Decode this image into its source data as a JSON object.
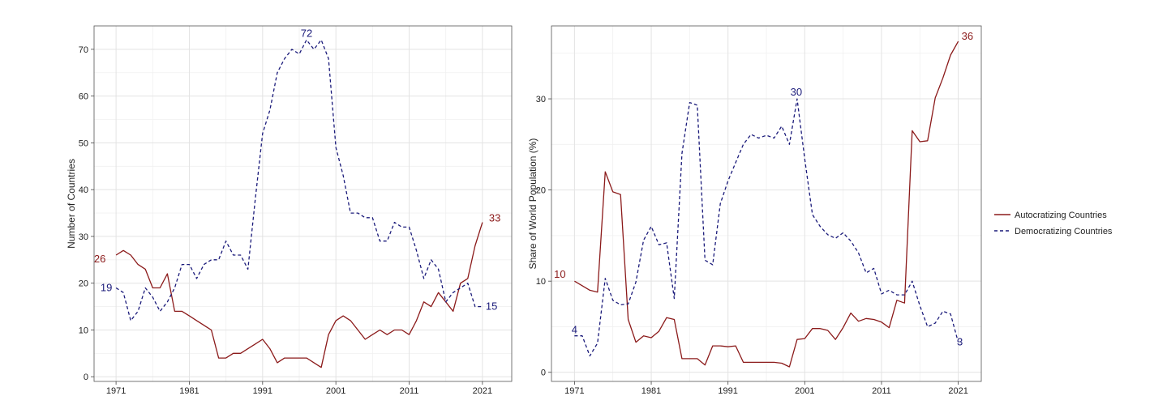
{
  "colors": {
    "autocratizing": "#8b1a1a",
    "democratizing": "#1a1a7a"
  },
  "legend": {
    "position": "right",
    "items": [
      {
        "label": "Autocratizing Countries",
        "style": "solid",
        "color": "#8b1a1a"
      },
      {
        "label": "Democratizing Countries",
        "style": "dashed",
        "color": "#1a1a7a"
      }
    ]
  },
  "chart_data": [
    {
      "type": "line",
      "title": "",
      "xlabel": "",
      "ylabel": "Number of Countries",
      "xlim": [
        1968,
        2025
      ],
      "ylim": [
        -1,
        75
      ],
      "xticks": [
        1971,
        1981,
        1991,
        2001,
        2011,
        2021
      ],
      "yticks": [
        0,
        10,
        20,
        30,
        40,
        50,
        60,
        70
      ],
      "grid": true,
      "x": [
        1971,
        1972,
        1973,
        1974,
        1975,
        1976,
        1977,
        1978,
        1979,
        1980,
        1981,
        1982,
        1983,
        1984,
        1985,
        1986,
        1987,
        1988,
        1989,
        1990,
        1991,
        1992,
        1993,
        1994,
        1995,
        1996,
        1997,
        1998,
        1999,
        2000,
        2001,
        2002,
        2003,
        2004,
        2005,
        2006,
        2007,
        2008,
        2009,
        2010,
        2011,
        2012,
        2013,
        2014,
        2015,
        2016,
        2017,
        2018,
        2019,
        2020,
        2021
      ],
      "series": [
        {
          "name": "Autocratizing Countries",
          "style": "solid",
          "values": [
            26,
            27,
            26,
            24,
            23,
            19,
            19,
            22,
            14,
            14,
            13,
            12,
            11,
            10,
            4,
            4,
            5,
            5,
            6,
            7,
            8,
            6,
            3,
            4,
            4,
            4,
            4,
            3,
            2,
            9,
            12,
            13,
            12,
            10,
            8,
            9,
            10,
            9,
            10,
            10,
            9,
            12,
            16,
            15,
            18,
            16,
            14,
            20,
            21,
            28,
            33
          ]
        },
        {
          "name": "Democratizing Countries",
          "style": "dashed",
          "values": [
            19,
            18,
            12,
            14,
            19,
            17,
            14,
            16,
            19,
            24,
            24,
            21,
            24,
            25,
            25,
            29,
            26,
            26,
            23,
            38,
            52,
            57,
            65,
            68,
            70,
            69,
            72,
            70,
            72,
            68,
            49,
            43,
            35,
            35,
            34,
            34,
            29,
            29,
            33,
            32,
            32,
            27,
            21,
            25,
            23,
            16,
            18,
            19,
            20,
            15,
            15
          ]
        }
      ],
      "annotations": [
        {
          "text": "26",
          "series": 0
        },
        {
          "text": "19",
          "series": 1
        },
        {
          "text": "72",
          "series": 1
        },
        {
          "text": "33",
          "series": 0
        },
        {
          "text": "15",
          "series": 1
        }
      ]
    },
    {
      "type": "line",
      "title": "",
      "xlabel": "",
      "ylabel": "Share of World Population (%)",
      "xlim": [
        1968,
        2024
      ],
      "ylim": [
        -1,
        38
      ],
      "xticks": [
        1971,
        1981,
        1991,
        2001,
        2011,
        2021
      ],
      "yticks": [
        0,
        10,
        20,
        30
      ],
      "grid": true,
      "x": [
        1971,
        1972,
        1973,
        1974,
        1975,
        1976,
        1977,
        1978,
        1979,
        1980,
        1981,
        1982,
        1983,
        1984,
        1985,
        1986,
        1987,
        1988,
        1989,
        1990,
        1991,
        1992,
        1993,
        1994,
        1995,
        1996,
        1997,
        1998,
        1999,
        2000,
        2001,
        2002,
        2003,
        2004,
        2005,
        2006,
        2007,
        2008,
        2009,
        2010,
        2011,
        2012,
        2013,
        2014,
        2015,
        2016,
        2017,
        2018,
        2019,
        2020,
        2021
      ],
      "series": [
        {
          "name": "Autocratizing Countries",
          "style": "solid",
          "values": [
            10,
            9.5,
            9,
            8.8,
            22,
            19.8,
            19.5,
            5.8,
            3.3,
            4,
            3.8,
            4.5,
            6,
            5.8,
            1.5,
            1.5,
            1.5,
            0.8,
            2.9,
            2.9,
            2.8,
            2.9,
            1.1,
            1.1,
            1.1,
            1.1,
            1.1,
            1,
            0.6,
            3.6,
            3.7,
            4.8,
            4.8,
            4.6,
            3.6,
            4.9,
            6.5,
            5.6,
            5.9,
            5.8,
            5.5,
            4.9,
            7.9,
            7.6,
            26.5,
            25.3,
            25.4,
            30.1,
            32.3,
            34.8,
            36.3
          ]
        },
        {
          "name": "Democratizing Countries",
          "style": "dashed",
          "values": [
            4,
            4,
            1.8,
            3.2,
            10.3,
            7.9,
            7.4,
            7.5,
            9.9,
            14.5,
            16,
            14,
            14.2,
            8.1,
            24,
            29.6,
            29.3,
            12.3,
            11.8,
            18.5,
            21,
            23,
            25,
            26.1,
            25.7,
            26,
            25.7,
            27,
            25,
            30,
            23.4,
            17.3,
            16,
            15.1,
            14.7,
            15.3,
            14.4,
            13.1,
            10.9,
            11.4,
            8.6,
            9,
            8.5,
            8.5,
            10,
            7.3,
            5,
            5.4,
            6.7,
            6.4,
            3.3
          ]
        }
      ],
      "annotations": [
        {
          "text": "10",
          "series": 0
        },
        {
          "text": "4",
          "series": 1
        },
        {
          "text": "30",
          "series": 1
        },
        {
          "text": "36",
          "series": 0
        },
        {
          "text": "3",
          "series": 1
        }
      ]
    }
  ]
}
